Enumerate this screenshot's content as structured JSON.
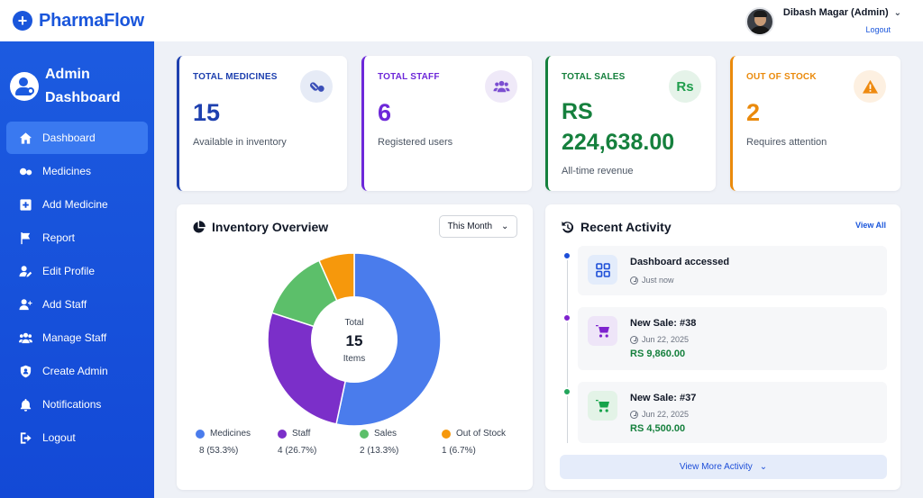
{
  "brand": {
    "name": "PharmaFlow"
  },
  "user": {
    "name": "Dibash Magar (Admin)",
    "logout": "Logout"
  },
  "sidebar": {
    "title_line1": "Admin",
    "title_line2": "Dashboard",
    "items": [
      {
        "label": "Dashboard",
        "icon": "home-icon",
        "active": true
      },
      {
        "label": "Medicines",
        "icon": "pills-icon"
      },
      {
        "label": "Add Medicine",
        "icon": "plus-square-icon"
      },
      {
        "label": "Report",
        "icon": "flag-icon"
      },
      {
        "label": "Edit Profile",
        "icon": "user-edit-icon"
      },
      {
        "label": "Add Staff",
        "icon": "user-plus-icon"
      },
      {
        "label": "Manage Staff",
        "icon": "users-icon"
      },
      {
        "label": "Create Admin",
        "icon": "shield-icon"
      },
      {
        "label": "Notifications",
        "icon": "bell-icon"
      },
      {
        "label": "Logout",
        "icon": "sign-out-icon"
      }
    ]
  },
  "stats": {
    "medicines": {
      "label": "TOTAL MEDICINES",
      "value": "15",
      "sub": "Available in inventory",
      "color": "#1e40af"
    },
    "staff": {
      "label": "TOTAL STAFF",
      "value": "6",
      "sub": "Registered users",
      "color": "#6d28d9"
    },
    "sales": {
      "label": "TOTAL SALES",
      "currency": "RS",
      "value": "224,638.00",
      "sub": "All-time revenue",
      "color": "#15803d",
      "icon_text": "Rs"
    },
    "stock": {
      "label": "OUT OF STOCK",
      "value": "2",
      "sub": "Requires attention",
      "color": "#ea8a0c"
    }
  },
  "inventory": {
    "title": "Inventory Overview",
    "period": "This Month",
    "center_label": "Total",
    "center_value": "15",
    "center_unit": "Items"
  },
  "chart_data": {
    "type": "pie",
    "variant": "donut",
    "categories": [
      "Medicines",
      "Staff",
      "Sales",
      "Out of Stock"
    ],
    "values": [
      8,
      4,
      2,
      1
    ],
    "labels": [
      "8 (53.3%)",
      "4 (26.7%)",
      "2 (13.3%)",
      "1 (6.7%)"
    ],
    "colors": [
      "#4a7cec",
      "#7b2fc9",
      "#5cbf6a",
      "#f6980c"
    ],
    "legend": "bottom"
  },
  "activity": {
    "title": "Recent Activity",
    "view_all": "View All",
    "items": [
      {
        "title": "Dashboard accessed",
        "time": "Just now",
        "amount": "",
        "dot": "#1d4ed8"
      },
      {
        "title": "New Sale: #38",
        "time": "Jun 22, 2025",
        "amount": "RS 9,860.00",
        "dot": "#7e22ce"
      },
      {
        "title": "New Sale: #37",
        "time": "Jun 22, 2025",
        "amount": "RS 4,500.00",
        "dot": "#22a55b"
      }
    ],
    "more": "View More Activity"
  }
}
